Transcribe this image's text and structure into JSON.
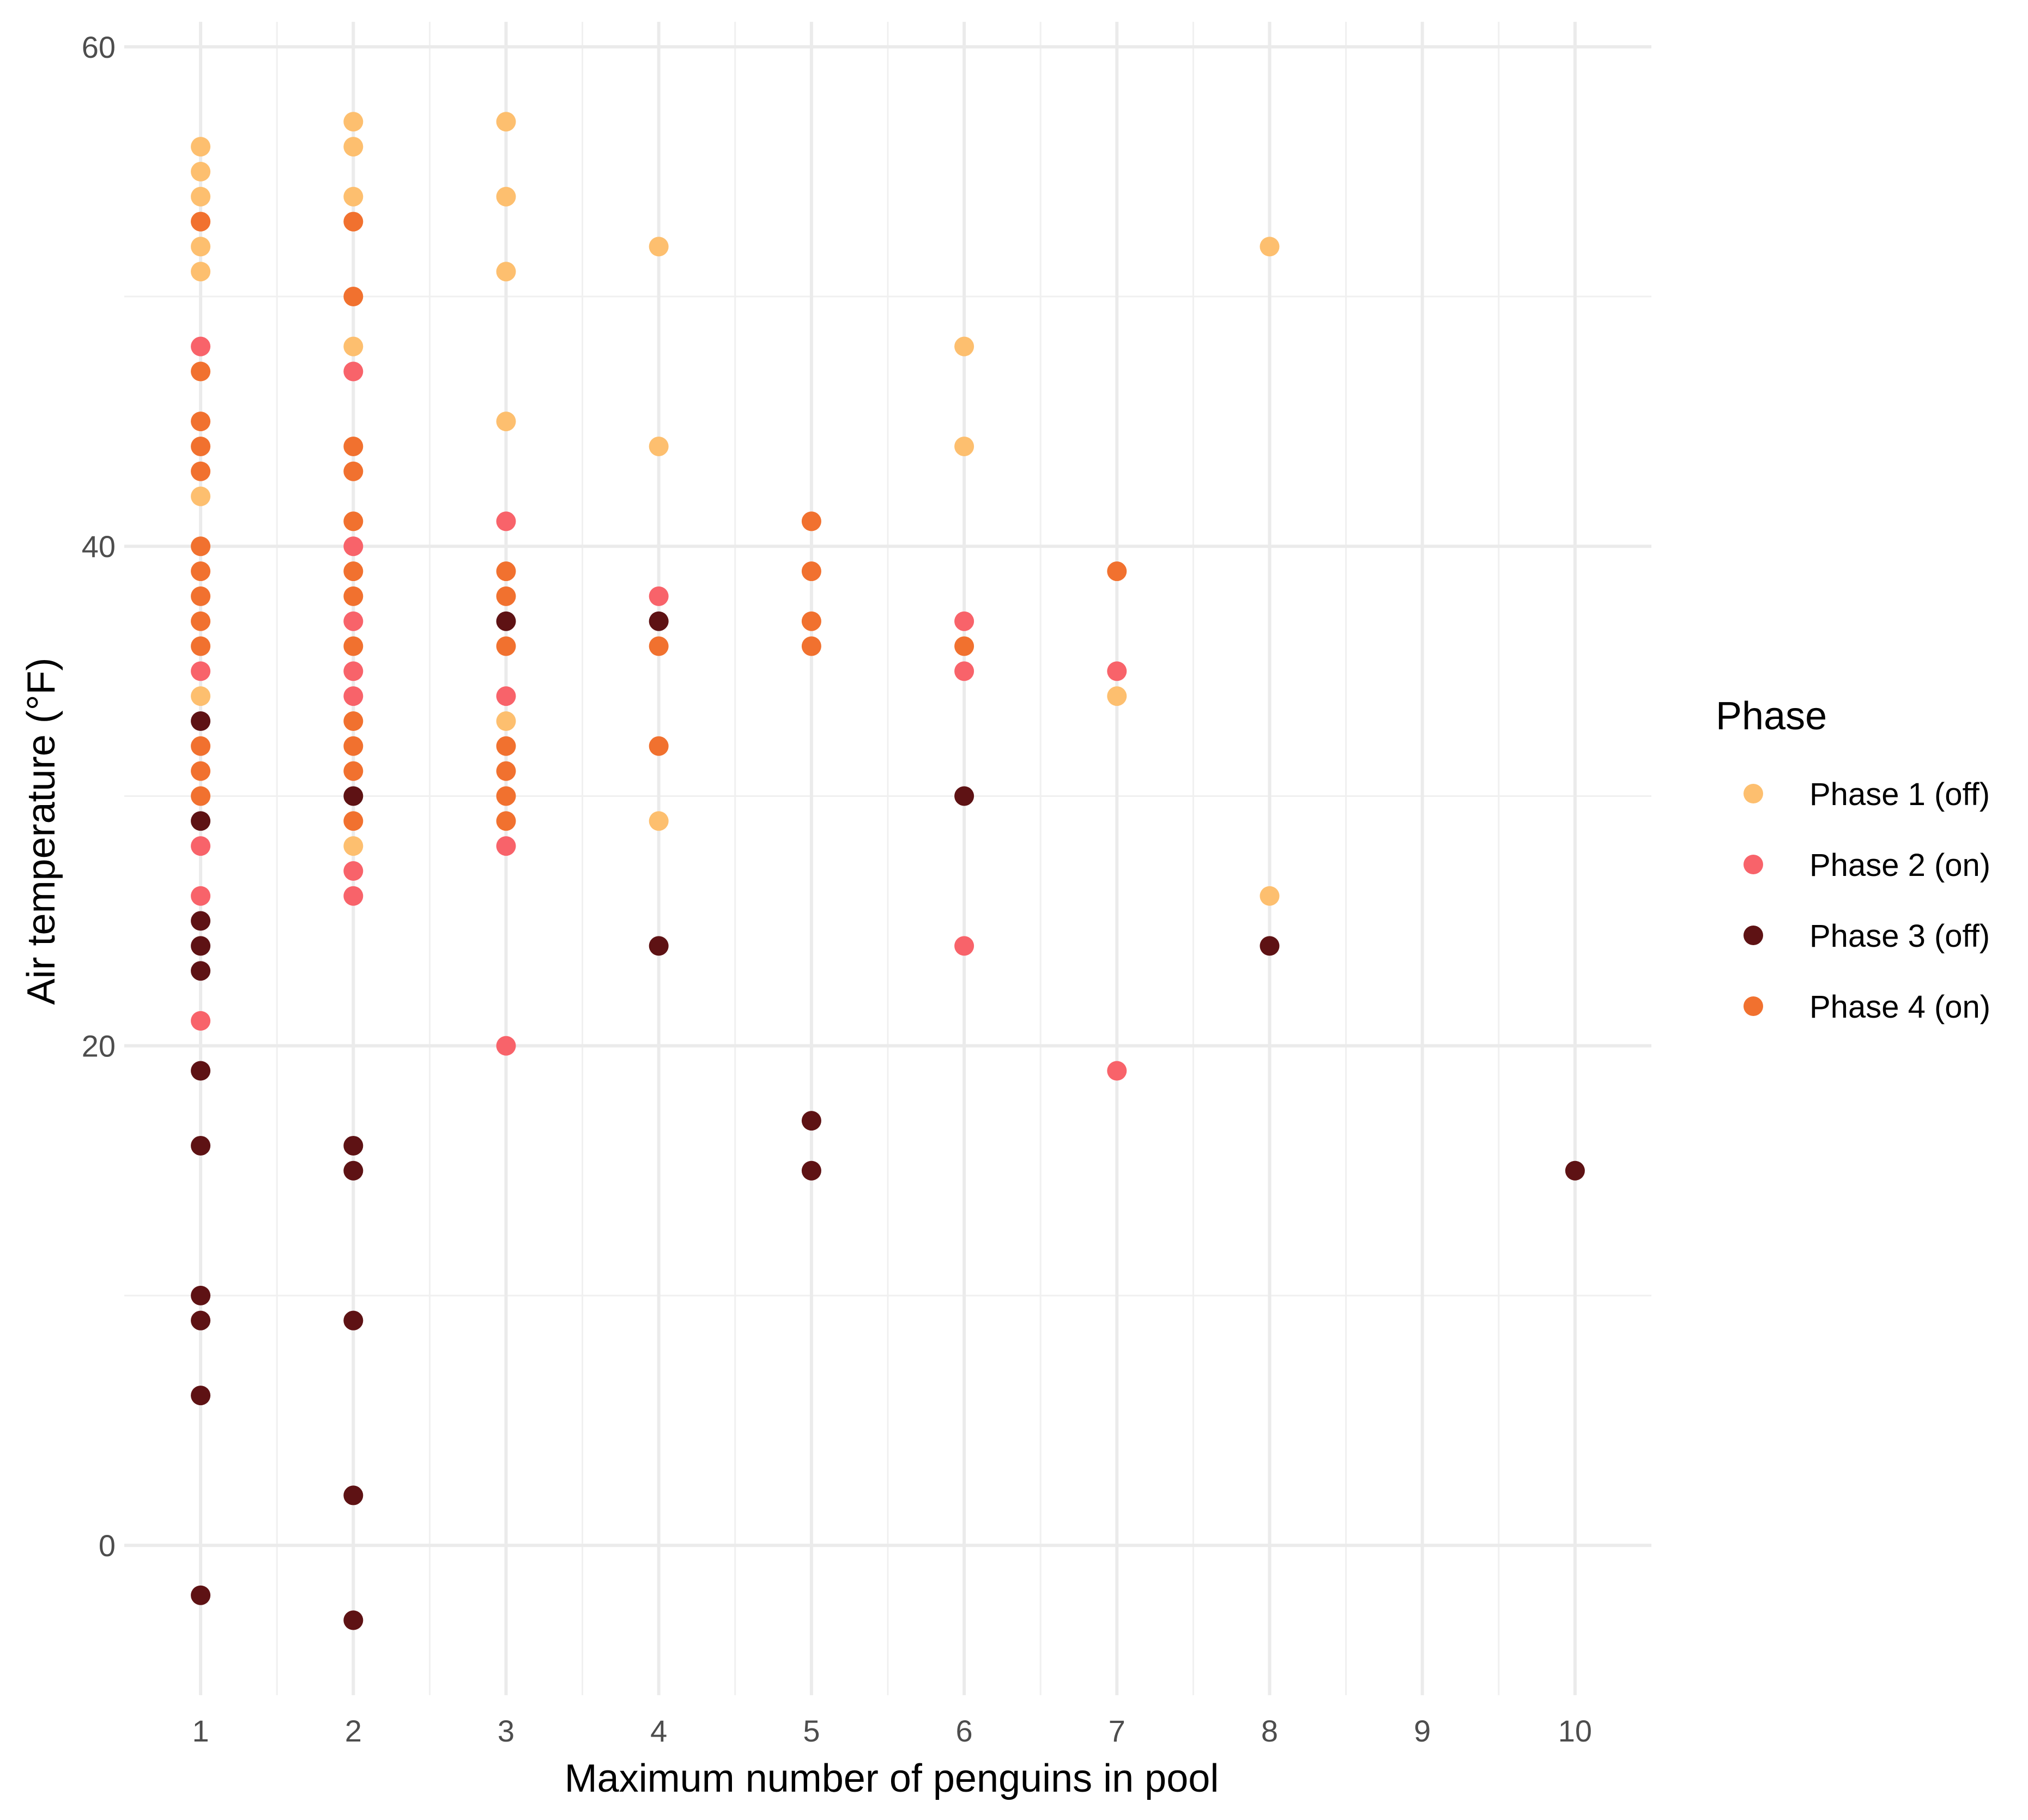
{
  "chart_data": {
    "type": "scatter",
    "title": "",
    "xlabel": "Maximum number of penguins in pool",
    "ylabel": "Air temperature (°F)",
    "xlim": [
      0.5,
      10.5
    ],
    "ylim": [
      -6,
      61
    ],
    "x_ticks": [
      "1",
      "2",
      "3",
      "4",
      "5",
      "6",
      "7",
      "8",
      "9",
      "10"
    ],
    "y_ticks": [
      "0",
      "20",
      "40",
      "60"
    ],
    "grid": true,
    "legend": {
      "title": "Phase",
      "position": "right"
    },
    "series": [
      {
        "name": "Phase 1 (off)",
        "color": "#FDBF6F",
        "points": [
          [
            1,
            56
          ],
          [
            1,
            55
          ],
          [
            1,
            54
          ],
          [
            1,
            53
          ],
          [
            1,
            52
          ],
          [
            1,
            51
          ],
          [
            1,
            42
          ],
          [
            1,
            34
          ],
          [
            2,
            57
          ],
          [
            2,
            56
          ],
          [
            2,
            54
          ],
          [
            2,
            48
          ],
          [
            2,
            28
          ],
          [
            3,
            57
          ],
          [
            3,
            54
          ],
          [
            3,
            51
          ],
          [
            3,
            45
          ],
          [
            3,
            33
          ],
          [
            4,
            52
          ],
          [
            4,
            44
          ],
          [
            4,
            29
          ],
          [
            6,
            48
          ],
          [
            6,
            44
          ],
          [
            7,
            34
          ],
          [
            8,
            52
          ],
          [
            8,
            26
          ]
        ]
      },
      {
        "name": "Phase 2 (on)",
        "color": "#F8636A",
        "points": [
          [
            1,
            48
          ],
          [
            1,
            35
          ],
          [
            1,
            28
          ],
          [
            1,
            26
          ],
          [
            1,
            21
          ],
          [
            2,
            47
          ],
          [
            2,
            40
          ],
          [
            2,
            37
          ],
          [
            2,
            35
          ],
          [
            2,
            34
          ],
          [
            2,
            27
          ],
          [
            2,
            26
          ],
          [
            3,
            41
          ],
          [
            3,
            34
          ],
          [
            3,
            28
          ],
          [
            3,
            20
          ],
          [
            4,
            38
          ],
          [
            6,
            37
          ],
          [
            6,
            35
          ],
          [
            6,
            24
          ],
          [
            7,
            35
          ],
          [
            7,
            19
          ]
        ]
      },
      {
        "name": "Phase 3 (off)",
        "color": "#5E1214",
        "points": [
          [
            1,
            33
          ],
          [
            1,
            29
          ],
          [
            1,
            25
          ],
          [
            1,
            24
          ],
          [
            1,
            23
          ],
          [
            1,
            19
          ],
          [
            1,
            16
          ],
          [
            1,
            10
          ],
          [
            1,
            9
          ],
          [
            1,
            6
          ],
          [
            1,
            -2
          ],
          [
            2,
            30
          ],
          [
            2,
            16
          ],
          [
            2,
            15
          ],
          [
            2,
            9
          ],
          [
            2,
            2
          ],
          [
            2,
            -3
          ],
          [
            3,
            37
          ],
          [
            4,
            37
          ],
          [
            4,
            24
          ],
          [
            5,
            17
          ],
          [
            5,
            15
          ],
          [
            6,
            30
          ],
          [
            8,
            24
          ],
          [
            10,
            15
          ]
        ]
      },
      {
        "name": "Phase 4 (on)",
        "color": "#F1712F",
        "points": [
          [
            1,
            53
          ],
          [
            1,
            47
          ],
          [
            1,
            45
          ],
          [
            1,
            44
          ],
          [
            1,
            43
          ],
          [
            1,
            40
          ],
          [
            1,
            39
          ],
          [
            1,
            38
          ],
          [
            1,
            37
          ],
          [
            1,
            36
          ],
          [
            1,
            32
          ],
          [
            1,
            31
          ],
          [
            1,
            30
          ],
          [
            2,
            53
          ],
          [
            2,
            50
          ],
          [
            2,
            44
          ],
          [
            2,
            43
          ],
          [
            2,
            41
          ],
          [
            2,
            39
          ],
          [
            2,
            38
          ],
          [
            2,
            36
          ],
          [
            2,
            33
          ],
          [
            2,
            32
          ],
          [
            2,
            31
          ],
          [
            2,
            29
          ],
          [
            3,
            39
          ],
          [
            3,
            38
          ],
          [
            3,
            36
          ],
          [
            3,
            32
          ],
          [
            3,
            31
          ],
          [
            3,
            30
          ],
          [
            3,
            29
          ],
          [
            4,
            36
          ],
          [
            4,
            32
          ],
          [
            5,
            41
          ],
          [
            5,
            39
          ],
          [
            5,
            37
          ],
          [
            5,
            36
          ],
          [
            6,
            36
          ],
          [
            7,
            39
          ]
        ]
      }
    ]
  }
}
